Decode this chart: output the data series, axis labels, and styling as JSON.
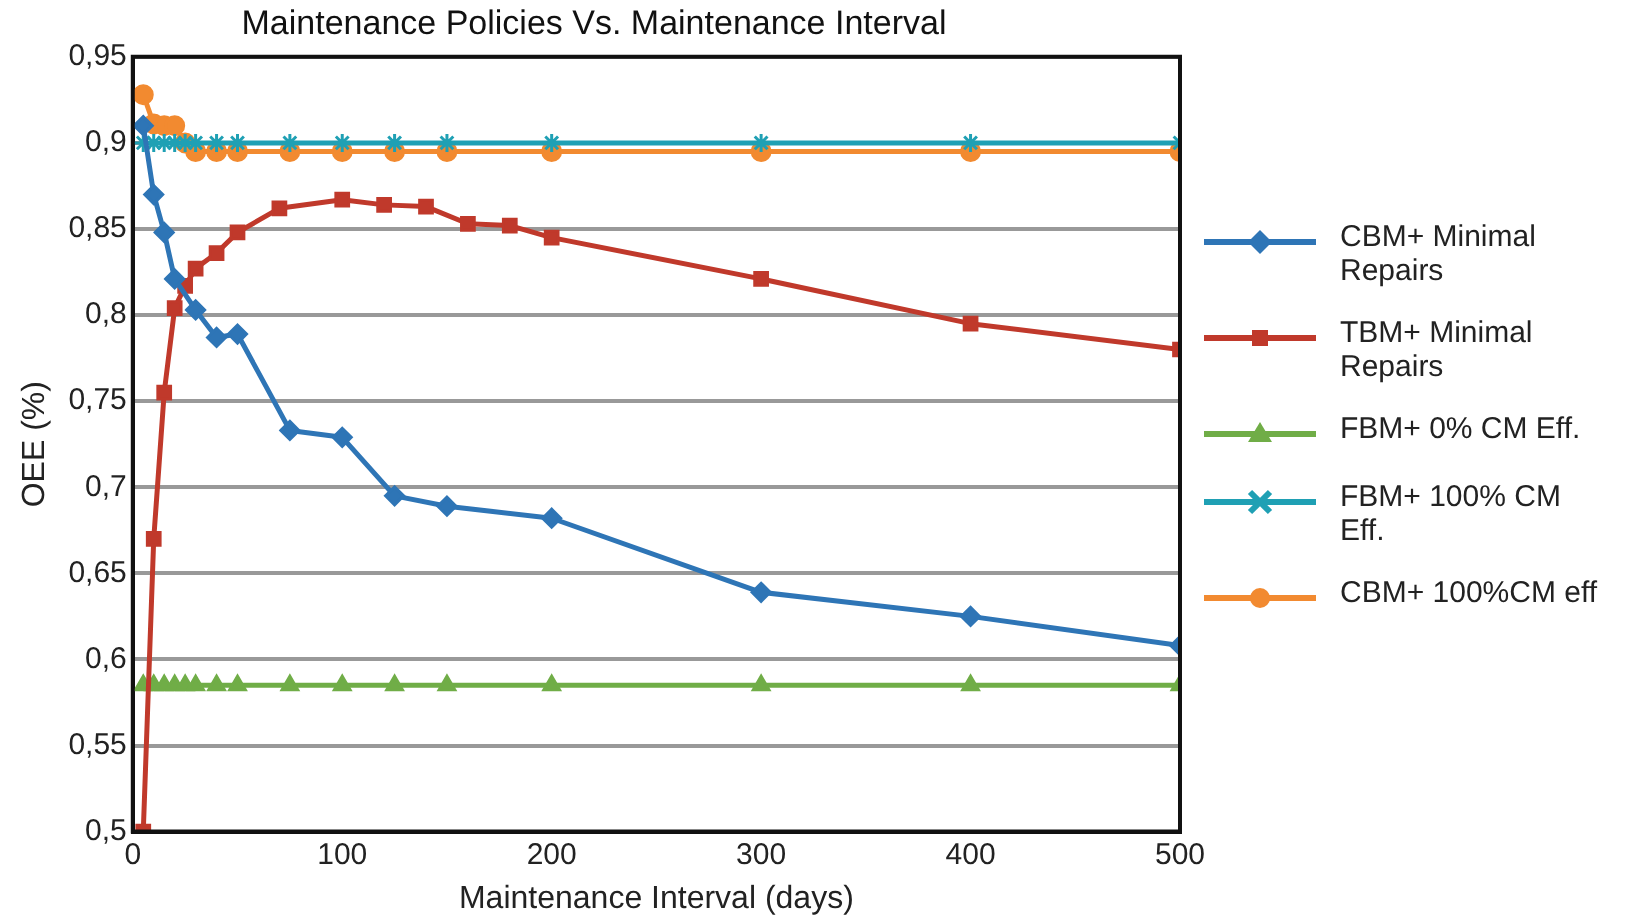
{
  "chart_data": {
    "type": "line",
    "title": "Maintenance Policies Vs. Maintenance Interval",
    "xlabel": "Maintenance Interval (days)",
    "ylabel": "OEE (%)",
    "xlim": [
      0,
      500
    ],
    "xticks": [
      0,
      100,
      200,
      300,
      400,
      500
    ],
    "ylim": [
      0.5,
      0.95
    ],
    "yticks": [
      {
        "value": 0.5,
        "label": "0,5"
      },
      {
        "value": 0.55,
        "label": "0,55"
      },
      {
        "value": 0.6,
        "label": "0,6"
      },
      {
        "value": 0.65,
        "label": "0,65"
      },
      {
        "value": 0.7,
        "label": "0,7"
      },
      {
        "value": 0.75,
        "label": "0,75"
      },
      {
        "value": 0.8,
        "label": "0,8"
      },
      {
        "value": 0.85,
        "label": "0,85"
      },
      {
        "value": 0.9,
        "label": "0,9"
      },
      {
        "value": 0.95,
        "label": "0,95"
      }
    ],
    "grid": "y",
    "legend": "right",
    "line_style": "solid",
    "series": [
      {
        "name": "CBM+ Minimal Repairs",
        "color": "#2e75b6",
        "marker": "diamond",
        "x": [
          5,
          10,
          15,
          20,
          30,
          40,
          50,
          75,
          100,
          125,
          150,
          200,
          300,
          400,
          500
        ],
        "values": [
          0.91,
          0.87,
          0.848,
          0.821,
          0.803,
          0.787,
          0.789,
          0.733,
          0.729,
          0.695,
          0.689,
          0.682,
          0.639,
          0.625,
          0.608
        ]
      },
      {
        "name": "TBM+ Minimal Repairs",
        "color": "#c0392b",
        "marker": "square",
        "x": [
          5,
          10,
          15,
          20,
          25,
          30,
          40,
          50,
          70,
          100,
          120,
          140,
          160,
          180,
          200,
          300,
          400,
          500
        ],
        "values": [
          0.5,
          0.67,
          0.755,
          0.804,
          0.817,
          0.827,
          0.836,
          0.848,
          0.862,
          0.867,
          0.864,
          0.863,
          0.853,
          0.852,
          0.845,
          0.821,
          0.795,
          0.78
        ]
      },
      {
        "name": "FBM+ 0% CM Eff.",
        "color": "#70ad47",
        "marker": "triangle",
        "x": [
          5,
          10,
          15,
          20,
          25,
          30,
          40,
          50,
          75,
          100,
          125,
          150,
          200,
          300,
          400,
          500
        ],
        "values": [
          0.585,
          0.585,
          0.585,
          0.585,
          0.585,
          0.585,
          0.585,
          0.585,
          0.585,
          0.585,
          0.585,
          0.585,
          0.585,
          0.585,
          0.585,
          0.585
        ]
      },
      {
        "name": "FBM+ 100% CM Eff.",
        "color": "#1fa0b4",
        "marker": "cross",
        "x": [
          5,
          10,
          15,
          20,
          25,
          30,
          40,
          50,
          75,
          100,
          125,
          150,
          200,
          300,
          400,
          500
        ],
        "values": [
          0.9,
          0.9,
          0.9,
          0.9,
          0.9,
          0.9,
          0.9,
          0.9,
          0.9,
          0.9,
          0.9,
          0.9,
          0.9,
          0.9,
          0.9,
          0.9
        ]
      },
      {
        "name": "CBM+ 100%CM eff",
        "color": "#f28a30",
        "marker": "circle",
        "x": [
          5,
          10,
          15,
          20,
          25,
          30,
          40,
          50,
          75,
          100,
          125,
          150,
          200,
          300,
          400,
          500
        ],
        "values": [
          0.928,
          0.911,
          0.91,
          0.91,
          0.9,
          0.895,
          0.895,
          0.895,
          0.895,
          0.895,
          0.895,
          0.895,
          0.895,
          0.895,
          0.895,
          0.895
        ]
      }
    ]
  }
}
